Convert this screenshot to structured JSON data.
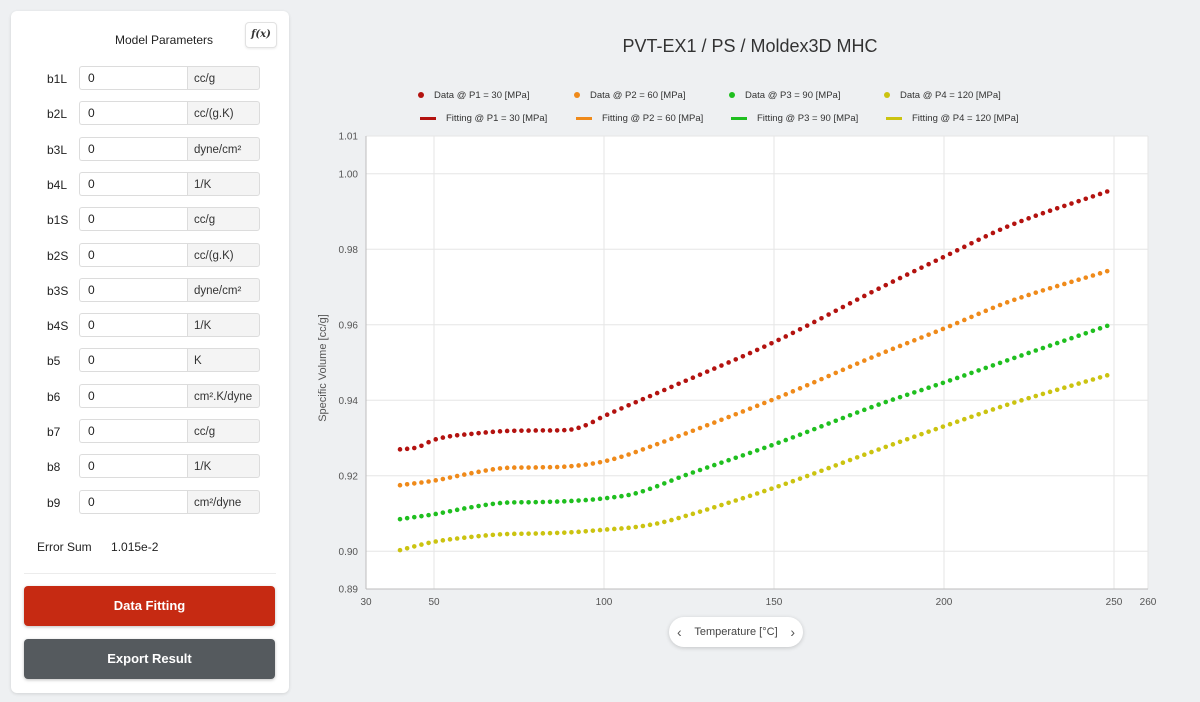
{
  "panel": {
    "title": "Model Parameters",
    "fx_label": "f(x)",
    "params": [
      {
        "name": "b1L",
        "value": "0",
        "unit": "cc/g"
      },
      {
        "name": "b2L",
        "value": "0",
        "unit": "cc/(g.K)"
      },
      {
        "name": "b3L",
        "value": "0",
        "unit": "dyne/cm²"
      },
      {
        "name": "b4L",
        "value": "0",
        "unit": "1/K"
      },
      {
        "name": "b1S",
        "value": "0",
        "unit": "cc/g"
      },
      {
        "name": "b2S",
        "value": "0",
        "unit": "cc/(g.K)"
      },
      {
        "name": "b3S",
        "value": "0",
        "unit": "dyne/cm²"
      },
      {
        "name": "b4S",
        "value": "0",
        "unit": "1/K"
      },
      {
        "name": "b5",
        "value": "0",
        "unit": "K"
      },
      {
        "name": "b6",
        "value": "0",
        "unit": "cm².K/dyne"
      },
      {
        "name": "b7",
        "value": "0",
        "unit": "cc/g"
      },
      {
        "name": "b8",
        "value": "0",
        "unit": "1/K"
      },
      {
        "name": "b9",
        "value": "0",
        "unit": "cm²/dyne"
      }
    ],
    "error_label": "Error Sum",
    "error_value": "1.015e-2",
    "fit_button": "Data Fitting",
    "export_button": "Export Result"
  },
  "chart_data": {
    "type": "scatter",
    "title": "PVT-EX1 / PS / Moldex3D MHC",
    "xlabel": "Temperature [°C]",
    "ylabel": "Specific Volume [cc/g]",
    "xlim": [
      30,
      260
    ],
    "ylim": [
      0.89,
      1.01
    ],
    "xticks": [
      30,
      50,
      100,
      150,
      200,
      250,
      260
    ],
    "yticks": [
      0.89,
      0.9,
      0.92,
      0.94,
      0.96,
      0.98,
      1.0,
      1.01
    ],
    "grid": true,
    "legend_position": "top",
    "series": [
      {
        "name": "Data @ P1 = 30 [MPa]",
        "fit_name": "Fitting @ P1 = 30 [MPa]",
        "color": "#b3120f",
        "knots": [
          [
            40,
            0.927
          ],
          [
            45,
            0.9275
          ],
          [
            50,
            0.9295
          ],
          [
            55,
            0.9305
          ],
          [
            60,
            0.931
          ],
          [
            70,
            0.9318
          ],
          [
            80,
            0.932
          ],
          [
            90,
            0.9322
          ],
          [
            95,
            0.9335
          ],
          [
            100,
            0.9358
          ],
          [
            120,
            0.9436
          ],
          [
            150,
            0.9554
          ],
          [
            180,
            0.9692
          ],
          [
            200,
            0.978
          ],
          [
            220,
            0.9865
          ],
          [
            248,
            0.9953
          ]
        ]
      },
      {
        "name": "Data @ P2 = 60 [MPa]",
        "fit_name": "Fitting @ P2 = 60 [MPa]",
        "color": "#ef8a1a",
        "knots": [
          [
            40,
            0.9175
          ],
          [
            50,
            0.9187
          ],
          [
            60,
            0.9205
          ],
          [
            70,
            0.922
          ],
          [
            80,
            0.9222
          ],
          [
            90,
            0.9225
          ],
          [
            100,
            0.9238
          ],
          [
            110,
            0.9265
          ],
          [
            150,
            0.9403
          ],
          [
            180,
            0.9518
          ],
          [
            200,
            0.959
          ],
          [
            220,
            0.9664
          ],
          [
            248,
            0.9742
          ]
        ]
      },
      {
        "name": "Data @ P3 = 90 [MPa]",
        "fit_name": "Fitting @ P3 = 90 [MPa]",
        "color": "#1fbf1f",
        "knots": [
          [
            40,
            0.9085
          ],
          [
            50,
            0.9098
          ],
          [
            60,
            0.9115
          ],
          [
            70,
            0.9128
          ],
          [
            80,
            0.913
          ],
          [
            90,
            0.9133
          ],
          [
            100,
            0.914
          ],
          [
            110,
            0.9155
          ],
          [
            125,
            0.9205
          ],
          [
            150,
            0.9283
          ],
          [
            180,
            0.9386
          ],
          [
            200,
            0.9447
          ],
          [
            220,
            0.951
          ],
          [
            248,
            0.9597
          ]
        ]
      },
      {
        "name": "Data @ P4 = 120 [MPa]",
        "fit_name": "Fitting @ P4 = 120 [MPa]",
        "color": "#cbc310",
        "knots": [
          [
            40,
            0.9003
          ],
          [
            50,
            0.9025
          ],
          [
            60,
            0.9037
          ],
          [
            70,
            0.9045
          ],
          [
            80,
            0.9047
          ],
          [
            90,
            0.905
          ],
          [
            100,
            0.9057
          ],
          [
            110,
            0.9065
          ],
          [
            120,
            0.9083
          ],
          [
            150,
            0.9168
          ],
          [
            180,
            0.9267
          ],
          [
            200,
            0.9331
          ],
          [
            220,
            0.9392
          ],
          [
            248,
            0.9466
          ]
        ]
      }
    ]
  }
}
